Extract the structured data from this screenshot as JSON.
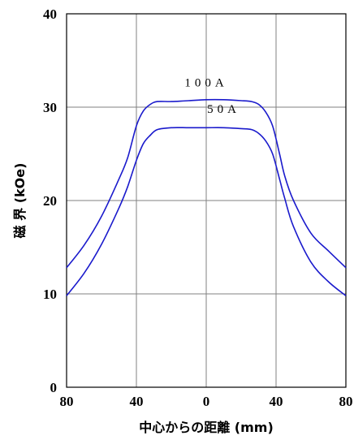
{
  "chart_data": {
    "type": "line",
    "xlabel": "中心からの距離 (mm)",
    "ylabel": "磁 界 (kOe)",
    "xlim": [
      -80,
      80
    ],
    "ylim": [
      0,
      40
    ],
    "x_ticks": [
      -80,
      -40,
      0,
      40,
      80
    ],
    "x_tick_labels": [
      "80",
      "40",
      "0",
      "40",
      "80"
    ],
    "y_ticks": [
      0,
      10,
      20,
      30,
      40
    ],
    "y_tick_labels": [
      "0",
      "10",
      "20",
      "30",
      "40"
    ],
    "grid": true,
    "series": [
      {
        "name": "100A",
        "color": "#1a1acc",
        "x": [
          -80,
          -70,
          -60,
          -50,
          -45,
          -40,
          -36,
          -32,
          -28,
          -20,
          -10,
          0,
          10,
          20,
          26,
          30,
          34,
          38,
          42,
          45,
          50,
          60,
          70,
          80
        ],
        "y": [
          12.8,
          15.2,
          18.3,
          22.3,
          24.6,
          28.0,
          29.6,
          30.3,
          30.6,
          30.6,
          30.7,
          30.8,
          30.8,
          30.7,
          30.6,
          30.3,
          29.5,
          28.0,
          25.0,
          22.6,
          20.0,
          16.5,
          14.6,
          12.8
        ]
      },
      {
        "name": "50A",
        "color": "#1a1acc",
        "x": [
          -80,
          -70,
          -60,
          -50,
          -45,
          -40,
          -36,
          -32,
          -28,
          -20,
          -10,
          0,
          10,
          20,
          26,
          30,
          34,
          38,
          42,
          45,
          50,
          60,
          70,
          80
        ],
        "y": [
          9.8,
          12.2,
          15.3,
          19.2,
          21.5,
          24.3,
          26.1,
          27.0,
          27.6,
          27.8,
          27.8,
          27.8,
          27.8,
          27.7,
          27.6,
          27.2,
          26.4,
          25.0,
          22.3,
          20.2,
          17.2,
          13.4,
          11.3,
          9.8
        ]
      }
    ],
    "annotations": [
      {
        "text": "100A",
        "x": 0,
        "y": 32.2
      },
      {
        "text": "50A",
        "x": 10,
        "y": 29.4
      }
    ]
  }
}
